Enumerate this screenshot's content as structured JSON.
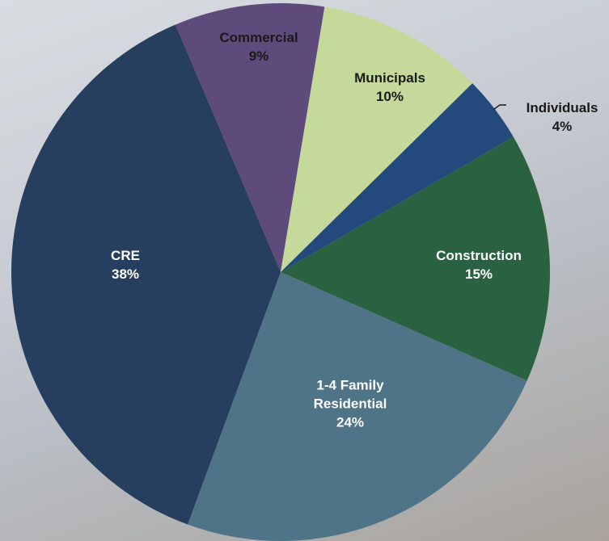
{
  "chart_data": {
    "type": "pie",
    "categories": [
      "Commercial",
      "Municipals",
      "Individuals",
      "Construction",
      "1-4 Family Residential",
      "CRE"
    ],
    "values": [
      9,
      10,
      4,
      15,
      24,
      38
    ],
    "value_labels": [
      "9%",
      "10%",
      "4%",
      "15%",
      "24%",
      "38%"
    ],
    "colors": [
      "#5f4a7c",
      "#c5d99a",
      "#24497c",
      "#2a6140",
      "#4f7488",
      "#263f5e"
    ]
  }
}
